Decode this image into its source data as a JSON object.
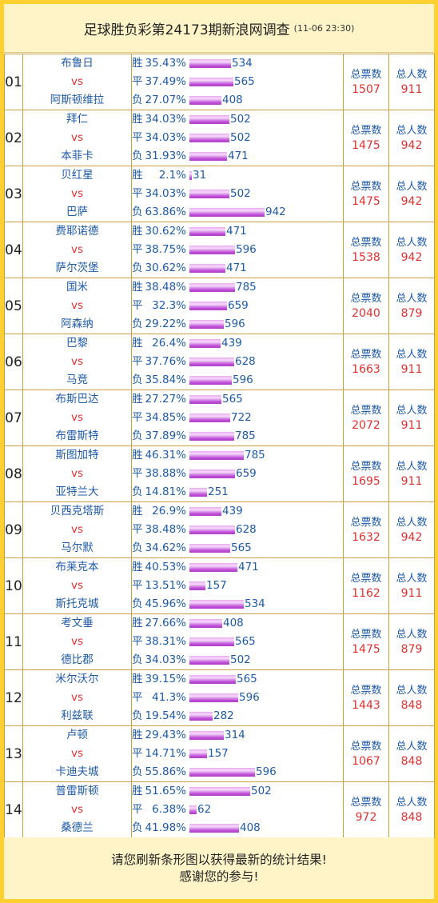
{
  "header": {
    "title": "足球胜负彩第24173期新浪网调查",
    "time": "(11-06 23:30)"
  },
  "labels": {
    "vs": "vs",
    "win": "胜",
    "draw": "平",
    "loss": "负",
    "total_votes": "总票数",
    "total_people": "总人数"
  },
  "matches": [
    {
      "no": "01",
      "home": "布鲁日",
      "away": "阿斯顿维拉",
      "win_pct": "35.43%",
      "win_cnt": "534",
      "draw_pct": "37.49%",
      "draw_cnt": "565",
      "loss_pct": "27.07%",
      "loss_cnt": "408",
      "votes": "1507",
      "people": "911"
    },
    {
      "no": "02",
      "home": "拜仁",
      "away": "本菲卡",
      "win_pct": "34.03%",
      "win_cnt": "502",
      "draw_pct": "34.03%",
      "draw_cnt": "502",
      "loss_pct": "31.93%",
      "loss_cnt": "471",
      "votes": "1475",
      "people": "942"
    },
    {
      "no": "03",
      "home": "贝红星",
      "away": "巴萨",
      "win_pct": "2.1%",
      "win_cnt": "31",
      "draw_pct": "34.03%",
      "draw_cnt": "502",
      "loss_pct": "63.86%",
      "loss_cnt": "942",
      "votes": "1475",
      "people": "942"
    },
    {
      "no": "04",
      "home": "费耶诺德",
      "away": "萨尔茨堡",
      "win_pct": "30.62%",
      "win_cnt": "471",
      "draw_pct": "38.75%",
      "draw_cnt": "596",
      "loss_pct": "30.62%",
      "loss_cnt": "471",
      "votes": "1538",
      "people": "942"
    },
    {
      "no": "05",
      "home": "国米",
      "away": "阿森纳",
      "win_pct": "38.48%",
      "win_cnt": "785",
      "draw_pct": "32.3%",
      "draw_cnt": "659",
      "loss_pct": "29.22%",
      "loss_cnt": "596",
      "votes": "2040",
      "people": "879"
    },
    {
      "no": "06",
      "home": "巴黎",
      "away": "马竞",
      "win_pct": "26.4%",
      "win_cnt": "439",
      "draw_pct": "37.76%",
      "draw_cnt": "628",
      "loss_pct": "35.84%",
      "loss_cnt": "596",
      "votes": "1663",
      "people": "911"
    },
    {
      "no": "07",
      "home": "布斯巴达",
      "away": "布雷斯特",
      "win_pct": "27.27%",
      "win_cnt": "565",
      "draw_pct": "34.85%",
      "draw_cnt": "722",
      "loss_pct": "37.89%",
      "loss_cnt": "785",
      "votes": "2072",
      "people": "911"
    },
    {
      "no": "08",
      "home": "斯图加特",
      "away": "亚特兰大",
      "win_pct": "46.31%",
      "win_cnt": "785",
      "draw_pct": "38.88%",
      "draw_cnt": "659",
      "loss_pct": "14.81%",
      "loss_cnt": "251",
      "votes": "1695",
      "people": "911"
    },
    {
      "no": "09",
      "home": "贝西克塔斯",
      "away": "马尔默",
      "win_pct": "26.9%",
      "win_cnt": "439",
      "draw_pct": "38.48%",
      "draw_cnt": "628",
      "loss_pct": "34.62%",
      "loss_cnt": "565",
      "votes": "1632",
      "people": "942"
    },
    {
      "no": "10",
      "home": "布莱克本",
      "away": "斯托克城",
      "win_pct": "40.53%",
      "win_cnt": "471",
      "draw_pct": "13.51%",
      "draw_cnt": "157",
      "loss_pct": "45.96%",
      "loss_cnt": "534",
      "votes": "1162",
      "people": "911"
    },
    {
      "no": "11",
      "home": "考文垂",
      "away": "德比郡",
      "win_pct": "27.66%",
      "win_cnt": "408",
      "draw_pct": "38.31%",
      "draw_cnt": "565",
      "loss_pct": "34.03%",
      "loss_cnt": "502",
      "votes": "1475",
      "people": "879"
    },
    {
      "no": "12",
      "home": "米尔沃尔",
      "away": "利兹联",
      "win_pct": "39.15%",
      "win_cnt": "565",
      "draw_pct": "41.3%",
      "draw_cnt": "596",
      "loss_pct": "19.54%",
      "loss_cnt": "282",
      "votes": "1443",
      "people": "848"
    },
    {
      "no": "13",
      "home": "卢顿",
      "away": "卡迪夫城",
      "win_pct": "29.43%",
      "win_cnt": "314",
      "draw_pct": "14.71%",
      "draw_cnt": "157",
      "loss_pct": "55.86%",
      "loss_cnt": "596",
      "votes": "1067",
      "people": "848"
    },
    {
      "no": "14",
      "home": "普雷斯顿",
      "away": "桑德兰",
      "win_pct": "51.65%",
      "win_cnt": "502",
      "draw_pct": "6.38%",
      "draw_cnt": "62",
      "loss_pct": "41.98%",
      "loss_cnt": "408",
      "votes": "972",
      "people": "848"
    }
  ],
  "footer": {
    "line1": "请您刷新条形图以获得最新的统计结果!",
    "line2": "感谢您的参与!"
  }
}
